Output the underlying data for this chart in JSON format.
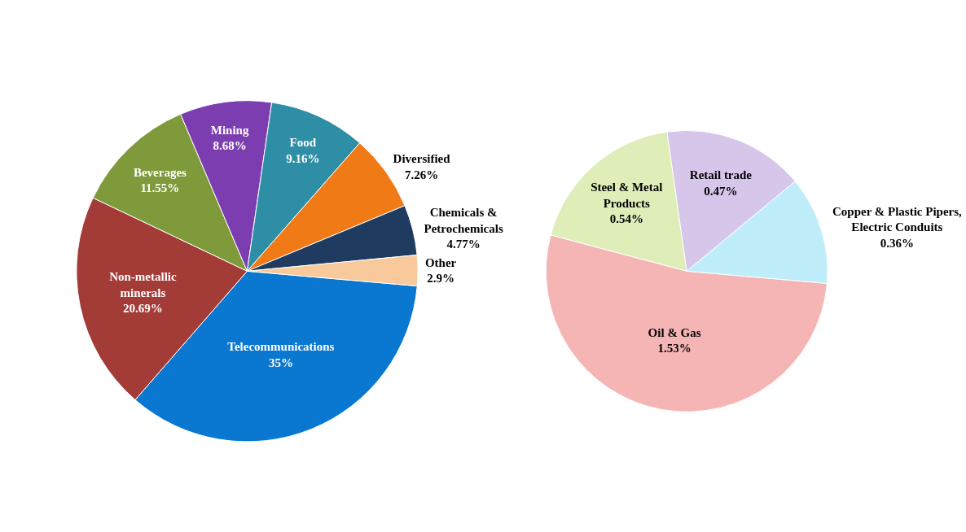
{
  "chart_data": [
    {
      "type": "pie",
      "categories": [
        "Telecommunications",
        "Non-metallic minerals",
        "Beverages",
        "Mining",
        "Food",
        "Diversified",
        "Chemicals & Petrochemicals",
        "Other"
      ],
      "values": [
        35,
        20.69,
        11.55,
        8.68,
        9.16,
        7.26,
        4.77,
        2.9
      ],
      "value_labels": [
        "35%",
        "20.69%",
        "11.55%",
        "8.68%",
        "9.16%",
        "7.26%",
        "4.77%",
        "2.9%"
      ],
      "colors": [
        "#0a78d0",
        "#a33b37",
        "#7f9a3b",
        "#7b3db0",
        "#2e8ea6",
        "#f07a16",
        "#1f3c60",
        "#f8c99a"
      ],
      "legend": false
    },
    {
      "type": "pie",
      "categories": [
        "Oil & Gas",
        "Steel & Metal Products",
        "Retail trade",
        "Copper & Plastic Pipers, Electric Conduits"
      ],
      "values": [
        1.53,
        0.54,
        0.47,
        0.36
      ],
      "value_labels": [
        "1.53%",
        "0.54%",
        "0.47%",
        "0.36%"
      ],
      "colors": [
        "#f6b5b5",
        "#dfeeb9",
        "#d6c6e9",
        "#bfeefa"
      ],
      "legend": false
    }
  ]
}
